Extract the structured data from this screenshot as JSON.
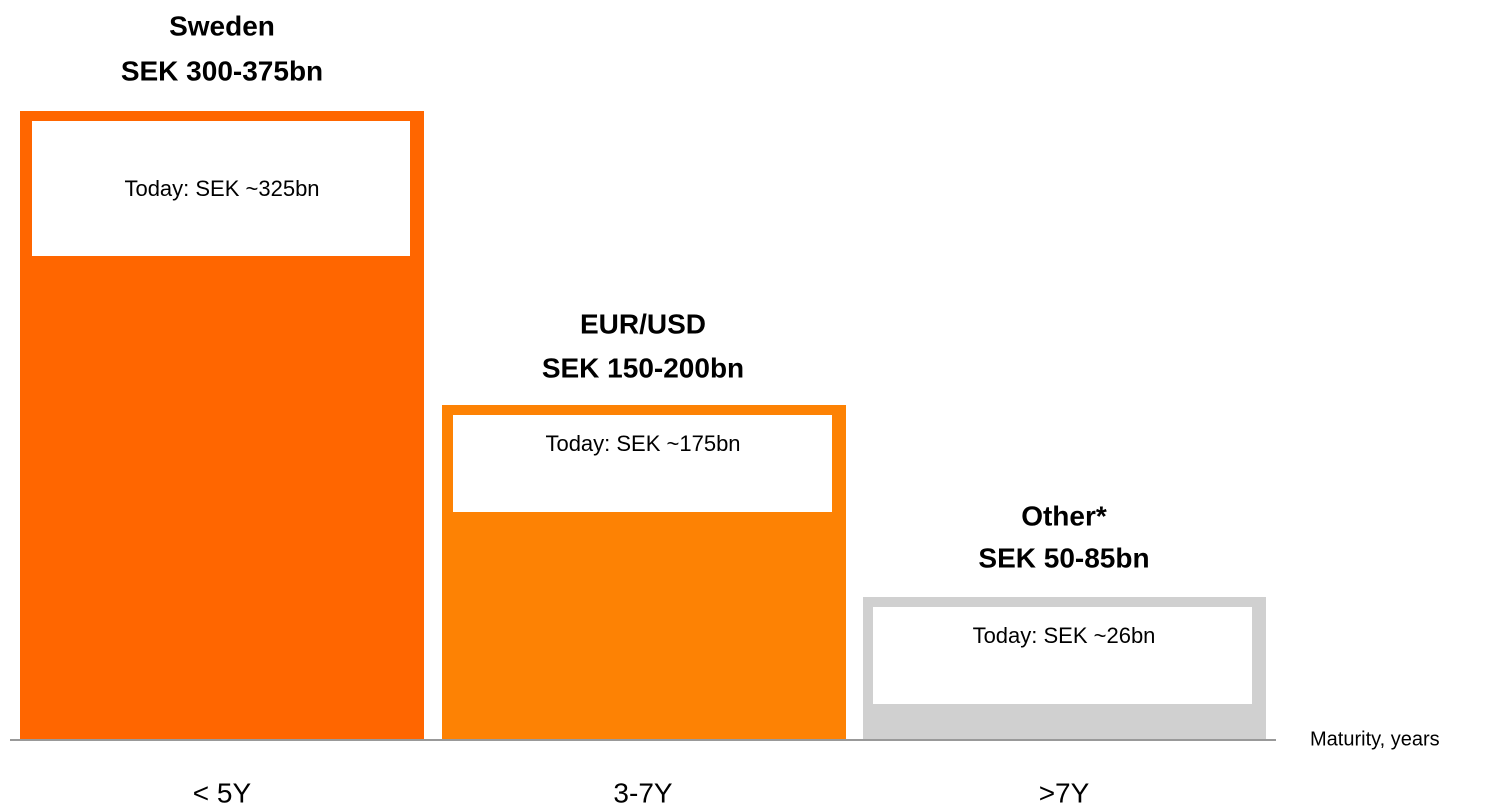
{
  "blocks": [
    {
      "title": "Sweden",
      "range": "SEK 300-375bn",
      "today": "Today: SEK ~325bn",
      "category": "< 5Y"
    },
    {
      "title": "EUR/USD",
      "range": "SEK 150-200bn",
      "today": "Today: SEK ~175bn",
      "category": "3-7Y"
    },
    {
      "title": "Other*",
      "range": "SEK 50-85bn",
      "today": "Today: SEK ~26bn",
      "category": ">7Y"
    }
  ],
  "axis_label": "Maturity, years"
}
